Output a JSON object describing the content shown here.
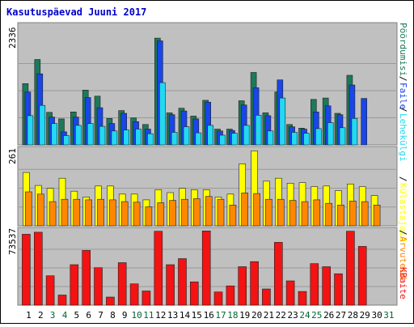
{
  "chart_data": [
    {
      "panel": "top",
      "type": "bar",
      "title": "Kasutuspäevad Juuni 2017",
      "y_tick_label": "2336",
      "ylim": [
        0,
        2336
      ],
      "categories": [
        "1",
        "2",
        "3",
        "4",
        "5",
        "6",
        "7",
        "8",
        "9",
        "10",
        "11",
        "12",
        "13",
        "14",
        "15",
        "16",
        "17",
        "18",
        "19",
        "20",
        "21",
        "22",
        "23",
        "24",
        "25",
        "26",
        "27",
        "28",
        "29",
        "30",
        "31"
      ],
      "weekend_days": [
        "3",
        "4",
        "10",
        "11",
        "17",
        "18",
        "24",
        "25",
        "31"
      ],
      "legend": [
        "Pöördumisi",
        "Faile",
        "Lehekülgi"
      ],
      "series": [
        {
          "name": "Pöördumisi",
          "color": "#1a7a5a",
          "values": [
            1320,
            1840,
            700,
            560,
            710,
            1180,
            1050,
            570,
            740,
            580,
            440,
            2300,
            690,
            790,
            620,
            960,
            340,
            340,
            950,
            1560,
            690,
            1140,
            440,
            360,
            980,
            1010,
            680,
            1500,
            0,
            0,
            0
          ]
        },
        {
          "name": "Faile",
          "color": "#1846e8",
          "values": [
            1140,
            1530,
            600,
            280,
            600,
            1020,
            800,
            460,
            680,
            500,
            340,
            2240,
            650,
            730,
            560,
            920,
            300,
            310,
            860,
            1230,
            630,
            1400,
            390,
            340,
            710,
            840,
            650,
            1290,
            1000,
            0,
            0
          ]
        },
        {
          "name": "Lehekülgi",
          "color": "#22d8f4",
          "values": [
            630,
            850,
            460,
            200,
            420,
            460,
            400,
            300,
            320,
            340,
            240,
            1340,
            270,
            390,
            260,
            420,
            210,
            250,
            420,
            640,
            300,
            1010,
            270,
            250,
            350,
            480,
            370,
            570,
            0,
            0,
            0
          ]
        }
      ]
    },
    {
      "panel": "middle",
      "type": "bar",
      "y_tick_label": "261",
      "ylim": [
        0,
        261
      ],
      "categories": [
        "1",
        "2",
        "3",
        "4",
        "5",
        "6",
        "7",
        "8",
        "9",
        "10",
        "11",
        "12",
        "13",
        "14",
        "15",
        "16",
        "17",
        "18",
        "19",
        "20",
        "21",
        "22",
        "23",
        "24",
        "25",
        "26",
        "27",
        "28",
        "29",
        "30",
        "31"
      ],
      "legend": [
        "Külastajaid",
        "Arvuteid"
      ],
      "series": [
        {
          "name": "Külastajaid",
          "color": "#ffff00",
          "values": [
            185,
            140,
            130,
            165,
            120,
            100,
            138,
            138,
            110,
            110,
            90,
            125,
            115,
            130,
            125,
            125,
            100,
            110,
            215,
            260,
            155,
            165,
            148,
            150,
            136,
            138,
            122,
            145,
            136,
            105,
            0
          ]
        },
        {
          "name": "Arvuteid",
          "color": "#ff8800",
          "values": [
            118,
            110,
            84,
            92,
            92,
            90,
            92,
            90,
            84,
            82,
            66,
            80,
            88,
            92,
            94,
            102,
            92,
            72,
            114,
            112,
            92,
            92,
            88,
            84,
            90,
            78,
            72,
            86,
            84,
            72,
            0
          ]
        }
      ]
    },
    {
      "panel": "bottom",
      "type": "bar",
      "y_tick_label": "73537",
      "ylim": [
        0,
        73537
      ],
      "categories": [
        "1",
        "2",
        "3",
        "4",
        "5",
        "6",
        "7",
        "8",
        "9",
        "10",
        "11",
        "12",
        "13",
        "14",
        "15",
        "16",
        "17",
        "18",
        "19",
        "20",
        "21",
        "22",
        "23",
        "24",
        "25",
        "26",
        "27",
        "28",
        "29",
        "30",
        "31"
      ],
      "legend": [
        "KBaite"
      ],
      "series": [
        {
          "name": "KBaite",
          "color": "#f41212",
          "values": [
            70000,
            72000,
            29000,
            10000,
            40000,
            54000,
            37000,
            8000,
            42000,
            21000,
            14000,
            73000,
            40000,
            46000,
            23000,
            73300,
            13000,
            19000,
            38000,
            43000,
            16000,
            62000,
            24000,
            13500,
            41000,
            38000,
            31000,
            73000,
            58000,
            0,
            0
          ]
        }
      ]
    }
  ],
  "colors": {
    "panel_bg": "#c0c0c0",
    "title_color": "#0000cc",
    "weekday_label": "#000000",
    "weekend_label": "#006633"
  }
}
